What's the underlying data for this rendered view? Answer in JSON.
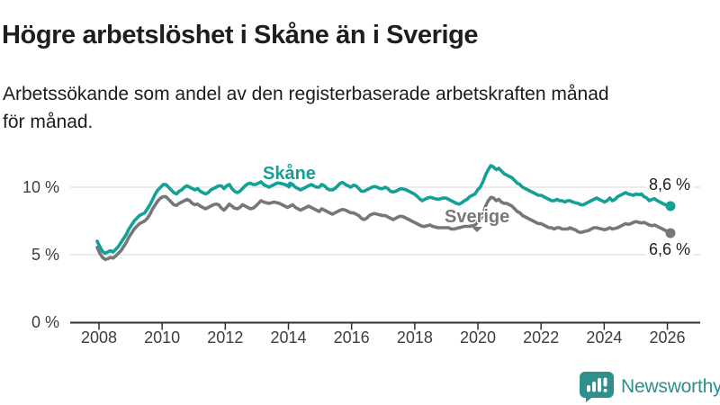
{
  "header": {
    "title": "Högre arbetslöshet i Skåne än i Sverige",
    "subtitle_lines": [
      "Arbetssökande som andel av den registerbaserade arbetskraften månad",
      "för månad."
    ]
  },
  "chart_data": {
    "type": "line",
    "title": "Högre arbetslöshet i Skåne än i Sverige",
    "subtitle": "Arbetssökande som andel av den registerbaserade arbetskraften månad för månad.",
    "x_unit": "month",
    "x_start": "2008-01",
    "x_end": "2026-02",
    "x_ticks": [
      "2008",
      "2010",
      "2012",
      "2014",
      "2016",
      "2018",
      "2020",
      "2022",
      "2024",
      "2026"
    ],
    "y_ticks": [
      {
        "label": "0 %",
        "value": 0
      },
      {
        "label": "5 %",
        "value": 5
      },
      {
        "label": "10 %",
        "value": 10
      }
    ],
    "ylim": [
      0,
      12.5
    ],
    "grid": "horizontal",
    "legend_position": "inline-labels",
    "series": [
      {
        "name": "Sverige",
        "color": "#77777a",
        "end_label": "6,6 %",
        "end_value": 6.6,
        "values": [
          5.55,
          5.1,
          4.8,
          4.65,
          4.7,
          4.8,
          4.75,
          4.9,
          5.1,
          5.3,
          5.6,
          5.9,
          6.3,
          6.6,
          6.9,
          7.1,
          7.3,
          7.4,
          7.5,
          7.7,
          8.0,
          8.4,
          8.7,
          9.0,
          9.2,
          9.3,
          9.3,
          9.1,
          8.9,
          8.7,
          8.65,
          8.8,
          8.9,
          9.0,
          9.1,
          9.0,
          8.8,
          8.7,
          8.75,
          8.6,
          8.5,
          8.4,
          8.5,
          8.6,
          8.7,
          8.75,
          8.7,
          8.45,
          8.3,
          8.5,
          8.75,
          8.6,
          8.45,
          8.4,
          8.5,
          8.7,
          8.6,
          8.5,
          8.4,
          8.45,
          8.6,
          8.8,
          9.0,
          8.9,
          8.85,
          8.8,
          8.85,
          8.9,
          8.85,
          8.8,
          8.7,
          8.6,
          8.5,
          8.6,
          8.7,
          8.5,
          8.4,
          8.3,
          8.4,
          8.5,
          8.6,
          8.5,
          8.4,
          8.3,
          8.2,
          8.4,
          8.3,
          8.2,
          8.1,
          8.0,
          8.1,
          8.2,
          8.3,
          8.35,
          8.3,
          8.2,
          8.1,
          8.1,
          8.0,
          7.9,
          7.7,
          7.6,
          7.7,
          7.9,
          8.0,
          8.05,
          8.0,
          7.95,
          7.9,
          7.9,
          7.8,
          7.7,
          7.6,
          7.7,
          7.8,
          7.85,
          7.8,
          7.7,
          7.6,
          7.5,
          7.4,
          7.3,
          7.2,
          7.1,
          7.1,
          7.15,
          7.2,
          7.1,
          7.05,
          7.0,
          7.0,
          7.0,
          7.0,
          7.0,
          6.9,
          6.9,
          6.95,
          7.0,
          7.05,
          7.1,
          7.1,
          7.1,
          7.15,
          7.2,
          7.4,
          7.6,
          8.0,
          8.6,
          9.0,
          9.25,
          9.2,
          9.0,
          9.1,
          8.9,
          8.8,
          8.8,
          8.7,
          8.6,
          8.4,
          8.2,
          8.1,
          7.9,
          7.8,
          7.7,
          7.6,
          7.5,
          7.4,
          7.3,
          7.3,
          7.2,
          7.1,
          7.0,
          7.0,
          6.9,
          7.0,
          7.0,
          6.9,
          6.9,
          6.9,
          7.0,
          6.9,
          6.85,
          6.7,
          6.65,
          6.7,
          6.75,
          6.8,
          6.9,
          7.0,
          7.0,
          6.95,
          6.9,
          6.85,
          6.9,
          7.0,
          6.9,
          6.95,
          7.0,
          7.1,
          7.2,
          7.3,
          7.25,
          7.3,
          7.4,
          7.45,
          7.4,
          7.35,
          7.4,
          7.3,
          7.2,
          7.15,
          7.2,
          7.1,
          7.0,
          6.9,
          6.8,
          6.7,
          6.6
        ]
      },
      {
        "name": "Skåne",
        "color": "#14a096",
        "end_label": "8,6 %",
        "end_value": 8.6,
        "values": [
          6.0,
          5.6,
          5.25,
          5.1,
          5.2,
          5.3,
          5.2,
          5.4,
          5.6,
          5.9,
          6.2,
          6.5,
          6.9,
          7.2,
          7.5,
          7.7,
          7.9,
          8.0,
          8.1,
          8.4,
          8.7,
          9.1,
          9.5,
          9.8,
          10.0,
          10.2,
          10.2,
          10.0,
          9.8,
          9.6,
          9.5,
          9.7,
          9.8,
          10.0,
          10.1,
          10.0,
          9.9,
          9.8,
          9.9,
          9.7,
          9.6,
          9.5,
          9.6,
          9.8,
          9.9,
          10.0,
          10.1,
          10.1,
          9.9,
          10.1,
          10.2,
          9.9,
          9.7,
          9.6,
          9.7,
          9.9,
          10.1,
          10.25,
          10.3,
          10.2,
          10.2,
          10.3,
          10.4,
          10.2,
          10.1,
          10.0,
          10.1,
          10.2,
          10.3,
          10.3,
          10.25,
          10.2,
          10.1,
          10.3,
          10.2,
          10.0,
          9.9,
          9.8,
          9.9,
          10.0,
          10.1,
          10.2,
          10.1,
          10.0,
          10.0,
          10.2,
          10.1,
          9.9,
          9.8,
          9.8,
          9.9,
          10.1,
          10.3,
          10.35,
          10.2,
          10.1,
          10.0,
          10.15,
          10.1,
          9.9,
          9.7,
          9.7,
          9.8,
          9.9,
          10.0,
          10.05,
          10.0,
          9.9,
          9.9,
          10.0,
          9.9,
          9.7,
          9.65,
          9.7,
          9.8,
          9.9,
          9.85,
          9.8,
          9.7,
          9.6,
          9.5,
          9.35,
          9.15,
          9.0,
          9.1,
          9.2,
          9.25,
          9.2,
          9.15,
          9.1,
          9.15,
          9.2,
          9.2,
          9.1,
          9.0,
          8.9,
          8.8,
          8.75,
          8.85,
          9.0,
          9.1,
          9.3,
          9.4,
          9.5,
          9.8,
          10.0,
          10.4,
          10.9,
          11.3,
          11.6,
          11.5,
          11.3,
          11.4,
          11.2,
          11.0,
          10.9,
          10.8,
          10.7,
          10.5,
          10.3,
          10.2,
          10.0,
          9.9,
          9.8,
          9.7,
          9.6,
          9.5,
          9.4,
          9.4,
          9.3,
          9.2,
          9.1,
          9.0,
          9.0,
          9.1,
          9.0,
          9.0,
          8.9,
          9.0,
          9.0,
          8.9,
          8.85,
          8.8,
          8.7,
          8.7,
          8.8,
          8.9,
          9.0,
          9.1,
          9.2,
          9.1,
          9.0,
          8.9,
          9.0,
          9.2,
          9.0,
          9.1,
          9.3,
          9.4,
          9.5,
          9.6,
          9.5,
          9.45,
          9.4,
          9.5,
          9.45,
          9.5,
          9.3,
          9.2,
          9.0,
          9.1,
          9.15,
          9.0,
          8.9,
          8.8,
          8.7,
          8.7,
          8.6
        ]
      }
    ]
  },
  "footer": {
    "brand": "Newsworthy"
  }
}
